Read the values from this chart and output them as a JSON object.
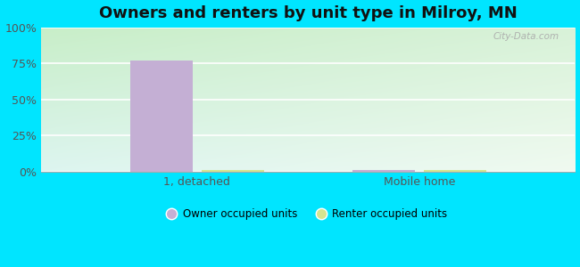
{
  "title": "Owners and renters by unit type in Milroy, MN",
  "categories": [
    "1, detached",
    "Mobile home"
  ],
  "owner_values": [
    77,
    1
  ],
  "renter_values": [
    1,
    1
  ],
  "owner_color": "#c4afd4",
  "renter_color": "#d4e490",
  "bar_width": 0.28,
  "ylim": [
    0,
    100
  ],
  "yticks": [
    0,
    25,
    50,
    75,
    100
  ],
  "ytick_labels": [
    "0%",
    "25%",
    "50%",
    "75%",
    "100%"
  ],
  "outer_bg": "#00e5ff",
  "title_fontsize": 13,
  "watermark": "City-Data.com",
  "legend_owner": "Owner occupied units",
  "legend_renter": "Renter occupied units"
}
